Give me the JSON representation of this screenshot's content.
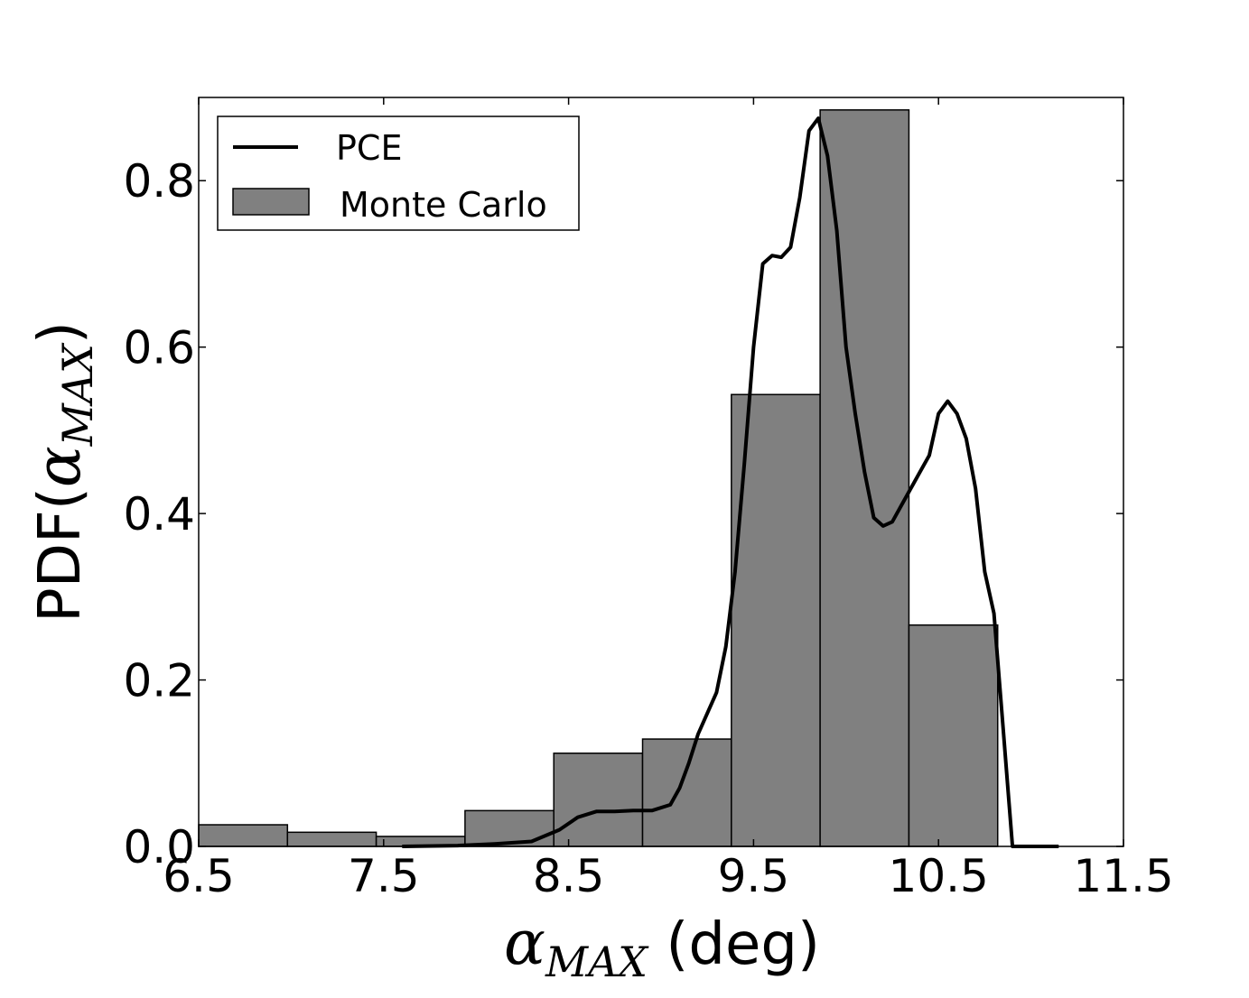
{
  "chart_data": {
    "type": "bar",
    "xlabel": {
      "symbol": "α",
      "subscript": "MAX",
      "unit": " (deg)"
    },
    "ylabel": {
      "prefix": "PDF(",
      "symbol": "α",
      "subscript": "MAX",
      "suffix": ")"
    },
    "xlim": [
      6.5,
      11.5
    ],
    "ylim": [
      0,
      0.9
    ],
    "xticks": [
      "6.5",
      "7.5",
      "8.5",
      "9.5",
      "10.5",
      "11.5"
    ],
    "xtick_values": [
      6.5,
      7.5,
      8.5,
      9.5,
      10.5,
      11.5
    ],
    "yticks": [
      "0.0",
      "0.2",
      "0.4",
      "0.6",
      "0.8"
    ],
    "ytick_values": [
      0.0,
      0.2,
      0.4,
      0.6,
      0.8
    ],
    "grid": false,
    "legend": {
      "placement": "top-left",
      "entries": [
        "PCE",
        "Monte Carlo"
      ]
    },
    "histogram": {
      "name": "Monte Carlo",
      "color": "#808080",
      "bins": [
        {
          "x0": 6.5,
          "x1": 6.98,
          "value": 0.026
        },
        {
          "x0": 6.98,
          "x1": 7.46,
          "value": 0.017
        },
        {
          "x0": 7.46,
          "x1": 7.94,
          "value": 0.012
        },
        {
          "x0": 7.94,
          "x1": 8.42,
          "value": 0.043
        },
        {
          "x0": 8.42,
          "x1": 8.9,
          "value": 0.112
        },
        {
          "x0": 8.9,
          "x1": 9.38,
          "value": 0.129
        },
        {
          "x0": 9.38,
          "x1": 9.86,
          "value": 0.543
        },
        {
          "x0": 9.86,
          "x1": 10.34,
          "value": 0.885
        },
        {
          "x0": 10.34,
          "x1": 10.82,
          "value": 0.266
        }
      ]
    },
    "series": [
      {
        "name": "PCE",
        "color": "#000000",
        "x": [
          7.6,
          7.9,
          8.1,
          8.3,
          8.45,
          8.55,
          8.65,
          8.75,
          8.85,
          8.95,
          9.05,
          9.1,
          9.15,
          9.2,
          9.25,
          9.3,
          9.35,
          9.4,
          9.45,
          9.5,
          9.55,
          9.6,
          9.65,
          9.7,
          9.75,
          9.8,
          9.85,
          9.9,
          9.95,
          10.0,
          10.05,
          10.1,
          10.15,
          10.2,
          10.25,
          10.3,
          10.35,
          10.4,
          10.45,
          10.5,
          10.55,
          10.6,
          10.65,
          10.7,
          10.75,
          10.8,
          10.85,
          10.9,
          10.95,
          11.0,
          11.05,
          11.1,
          11.15
        ],
        "y": [
          0.0,
          0.001,
          0.003,
          0.006,
          0.02,
          0.035,
          0.042,
          0.042,
          0.043,
          0.043,
          0.05,
          0.07,
          0.1,
          0.135,
          0.16,
          0.185,
          0.24,
          0.33,
          0.46,
          0.6,
          0.7,
          0.71,
          0.708,
          0.72,
          0.78,
          0.86,
          0.875,
          0.83,
          0.74,
          0.6,
          0.52,
          0.45,
          0.395,
          0.385,
          0.39,
          0.41,
          0.43,
          0.45,
          0.47,
          0.52,
          0.535,
          0.52,
          0.49,
          0.43,
          0.33,
          0.28,
          0.14,
          0.0,
          0.0,
          0.0,
          0.0,
          0.0,
          0.0
        ]
      }
    ]
  }
}
